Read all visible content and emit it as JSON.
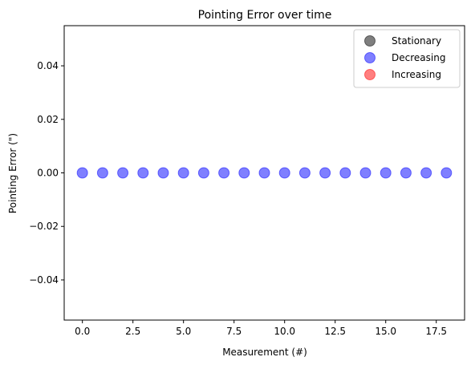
{
  "chart_data": {
    "type": "scatter",
    "title": "Pointing Error over time",
    "xlabel": "Measurement (#)",
    "ylabel": "Pointing Error (\")",
    "xlim": [
      -0.9,
      18.9
    ],
    "ylim": [
      -0.055,
      0.055
    ],
    "xticks": [
      0.0,
      2.5,
      5.0,
      7.5,
      10.0,
      12.5,
      15.0,
      17.5
    ],
    "xtick_labels": [
      "0.0",
      "2.5",
      "5.0",
      "7.5",
      "10.0",
      "12.5",
      "15.0",
      "17.5"
    ],
    "yticks": [
      -0.04,
      -0.02,
      0.0,
      0.02,
      0.04
    ],
    "ytick_labels": [
      "−0.04",
      "−0.02",
      "0.00",
      "0.02",
      "0.04"
    ],
    "grid": false,
    "legend_position": "top-right",
    "series": [
      {
        "name": "Stationary",
        "color": "#000000",
        "opacity": 0.5,
        "points": []
      },
      {
        "name": "Decreasing",
        "color": "#0000ff",
        "opacity": 0.5,
        "points": [
          [
            0,
            0
          ],
          [
            1,
            0
          ],
          [
            2,
            0
          ],
          [
            3,
            0
          ],
          [
            4,
            0
          ],
          [
            5,
            0
          ],
          [
            6,
            0
          ],
          [
            7,
            0
          ],
          [
            8,
            0
          ],
          [
            9,
            0
          ],
          [
            10,
            0
          ],
          [
            11,
            0
          ],
          [
            12,
            0
          ],
          [
            13,
            0
          ],
          [
            14,
            0
          ],
          [
            15,
            0
          ],
          [
            16,
            0
          ],
          [
            17,
            0
          ],
          [
            18,
            0
          ]
        ]
      },
      {
        "name": "Increasing",
        "color": "#ff0000",
        "opacity": 0.5,
        "points": []
      }
    ]
  }
}
